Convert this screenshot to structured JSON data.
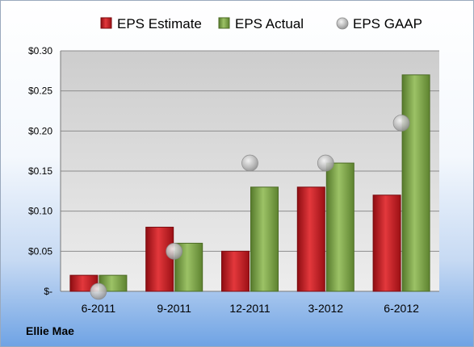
{
  "company": "Ellie Mae",
  "chart_data": {
    "type": "bar",
    "categories": [
      "6-2011",
      "9-2011",
      "12-2011",
      "3-2012",
      "6-2012"
    ],
    "series": [
      {
        "name": "EPS Estimate",
        "kind": "bar",
        "color": "#c0141b",
        "values": [
          0.02,
          0.08,
          0.05,
          0.13,
          0.12
        ]
      },
      {
        "name": "EPS Actual",
        "kind": "bar",
        "color": "#77a043",
        "values": [
          0.02,
          0.06,
          0.13,
          0.16,
          0.27
        ]
      },
      {
        "name": "EPS GAAP",
        "kind": "scatter",
        "color": "#b8b8b8",
        "values": [
          0.0,
          0.05,
          0.16,
          0.16,
          0.21
        ]
      }
    ],
    "ylim": [
      0,
      0.3
    ],
    "yticks": [
      0,
      0.05,
      0.1,
      0.15,
      0.2,
      0.25,
      0.3
    ],
    "ytick_labels": [
      "$-",
      "$0.05",
      "$0.10",
      "$0.15",
      "$0.20",
      "$0.25",
      "$0.30"
    ],
    "grid": true,
    "legend_position": "top"
  }
}
